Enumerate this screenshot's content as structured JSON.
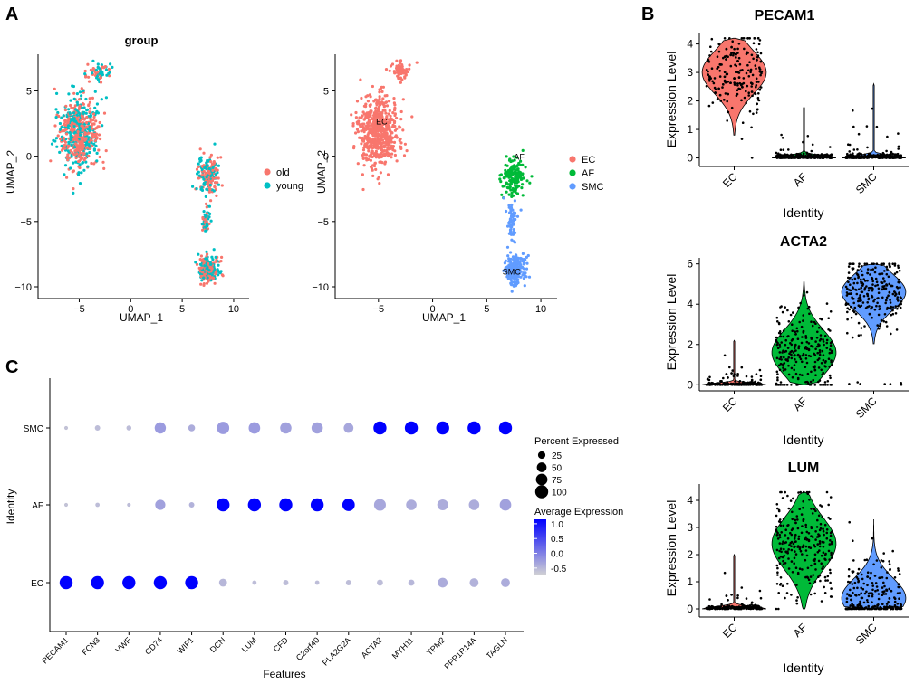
{
  "panel_labels": [
    "A",
    "B",
    "C"
  ],
  "colors": {
    "old": "#F8766D",
    "young": "#00BFC4",
    "EC": "#F8766D",
    "AF": "#00BA38",
    "SMC": "#619CFF",
    "dot_low": "#D3D3D3",
    "dot_high": "#0000FF",
    "frame": "#000000"
  },
  "chart_data": [
    {
      "id": "umap-group",
      "type": "scatter",
      "title": "group",
      "xlabel": "UMAP_1",
      "ylabel": "UMAP_2",
      "xlim": [
        -9,
        11.5
      ],
      "ylim": [
        -10.9,
        7.8
      ],
      "xticks": [
        -5,
        0,
        5,
        10
      ],
      "yticks": [
        -10,
        -5,
        0,
        5
      ],
      "legend_position": "right",
      "series": [
        {
          "name": "old",
          "color": "#F8766D"
        },
        {
          "name": "young",
          "color": "#00BFC4"
        }
      ],
      "clusters": [
        {
          "center": [
            -5,
            1.8
          ],
          "spread": [
            1.7,
            2.4
          ],
          "n": 620
        },
        {
          "center": [
            -3,
            6.5
          ],
          "spread": [
            1.0,
            0.6
          ],
          "n": 60
        },
        {
          "center": [
            7.5,
            -1.5
          ],
          "spread": [
            0.9,
            1.3
          ],
          "n": 180
        },
        {
          "center": [
            7.3,
            -5
          ],
          "spread": [
            0.3,
            1.2
          ],
          "n": 60
        },
        {
          "center": [
            7.6,
            -8.7
          ],
          "spread": [
            0.9,
            1.0
          ],
          "n": 220
        }
      ]
    },
    {
      "id": "umap-identity",
      "type": "scatter",
      "xlabel": "UMAP_1",
      "ylabel": "UMAP_2",
      "xlim": [
        -9,
        11.5
      ],
      "ylim": [
        -10.9,
        7.8
      ],
      "xticks": [
        -5,
        0,
        5,
        10
      ],
      "yticks": [
        -10,
        -5,
        0,
        5
      ],
      "legend_position": "right",
      "series": [
        {
          "name": "EC",
          "color": "#F8766D"
        },
        {
          "name": "AF",
          "color": "#00BA38"
        },
        {
          "name": "SMC",
          "color": "#619CFF"
        }
      ],
      "cluster_labels": [
        {
          "text": "EC",
          "x": -4.7,
          "y": 2.7
        },
        {
          "text": "AF",
          "x": 8,
          "y": 0
        },
        {
          "text": "SMC",
          "x": 7.3,
          "y": -8.8
        }
      ]
    },
    {
      "id": "violin-pecam1",
      "type": "violin",
      "title": "PECAM1",
      "xlabel": "Identity",
      "ylabel": "Expression Level",
      "categories": [
        "EC",
        "AF",
        "SMC"
      ],
      "ylim": [
        -0.3,
        4.4
      ],
      "yticks": [
        0,
        1,
        2,
        3,
        4
      ],
      "groups": [
        {
          "name": "EC",
          "median": 3.0,
          "max": 4.2,
          "zero_fraction": 0.0,
          "color": "#F8766D"
        },
        {
          "name": "AF",
          "median": 0.0,
          "max": 1.8,
          "zero_fraction": 0.85,
          "color": "#00BA38"
        },
        {
          "name": "SMC",
          "median": 0.0,
          "max": 2.6,
          "zero_fraction": 0.85,
          "color": "#619CFF"
        }
      ]
    },
    {
      "id": "violin-acta2",
      "type": "violin",
      "title": "ACTA2",
      "xlabel": "Identity",
      "ylabel": "Expression Level",
      "categories": [
        "EC",
        "AF",
        "SMC"
      ],
      "ylim": [
        -0.3,
        6.3
      ],
      "yticks": [
        0,
        2,
        4,
        6
      ],
      "groups": [
        {
          "name": "EC",
          "median": 0.0,
          "max": 2.2,
          "zero_fraction": 0.7,
          "color": "#F8766D"
        },
        {
          "name": "AF",
          "median": 1.6,
          "max": 5.1,
          "zero_fraction": 0.02,
          "color": "#00BA38"
        },
        {
          "name": "SMC",
          "median": 4.6,
          "max": 6.0,
          "zero_fraction": 0.02,
          "color": "#619CFF"
        }
      ]
    },
    {
      "id": "violin-lum",
      "type": "violin",
      "title": "LUM",
      "xlabel": "Identity",
      "ylabel": "Expression Level",
      "categories": [
        "EC",
        "AF",
        "SMC"
      ],
      "ylim": [
        -0.3,
        4.6
      ],
      "yticks": [
        0,
        1,
        2,
        3,
        4
      ],
      "groups": [
        {
          "name": "EC",
          "median": 0.0,
          "max": 2.0,
          "zero_fraction": 0.85,
          "color": "#F8766D"
        },
        {
          "name": "AF",
          "median": 2.4,
          "max": 4.3,
          "zero_fraction": 0.0,
          "color": "#00BA38"
        },
        {
          "name": "SMC",
          "median": 0.4,
          "max": 3.3,
          "zero_fraction": 0.25,
          "color": "#619CFF"
        }
      ]
    },
    {
      "id": "dotplot",
      "type": "dotplot",
      "xlabel": "Features",
      "ylabel": "Identity",
      "features": [
        "PECAM1",
        "FCN3",
        "VWF",
        "CD74",
        "WIF1",
        "DCN",
        "LUM",
        "CFD",
        "C2orf40",
        "PLA2G2A",
        "ACTA2",
        "MYH11",
        "TPM2",
        "PPP1R14A",
        "TAGLN"
      ],
      "identities": [
        "SMC",
        "AF",
        "EC"
      ],
      "size_legend": {
        "title": "Percent Expressed",
        "values": [
          25,
          50,
          75,
          100
        ]
      },
      "color_legend": {
        "title": "Average Expression",
        "ticks": [
          "1.0",
          "0.5",
          "0.0",
          "-0.5"
        ],
        "range": [
          -0.75,
          1.15
        ]
      },
      "percent": {
        "SMC": [
          3,
          10,
          8,
          70,
          20,
          90,
          75,
          72,
          72,
          50,
          100,
          100,
          100,
          100,
          100
        ],
        "AF": [
          3,
          5,
          3,
          55,
          10,
          100,
          100,
          100,
          100,
          90,
          80,
          60,
          65,
          60,
          75
        ],
        "EC": [
          100,
          100,
          100,
          100,
          100,
          30,
          5,
          10,
          5,
          10,
          15,
          15,
          50,
          40,
          40
        ]
      },
      "avg_exp": {
        "SMC": [
          -0.6,
          -0.55,
          -0.55,
          -0.25,
          -0.4,
          -0.25,
          -0.25,
          -0.3,
          -0.3,
          -0.35,
          1.15,
          1.15,
          1.15,
          1.15,
          1.15
        ],
        "AF": [
          -0.6,
          -0.55,
          -0.55,
          -0.3,
          -0.45,
          1.15,
          1.15,
          1.15,
          1.15,
          1.15,
          -0.35,
          -0.4,
          -0.4,
          -0.4,
          -0.3
        ],
        "EC": [
          1.15,
          1.15,
          1.15,
          1.15,
          1.15,
          -0.5,
          -0.55,
          -0.55,
          -0.55,
          -0.55,
          -0.55,
          -0.5,
          -0.4,
          -0.45,
          -0.4
        ]
      }
    }
  ]
}
